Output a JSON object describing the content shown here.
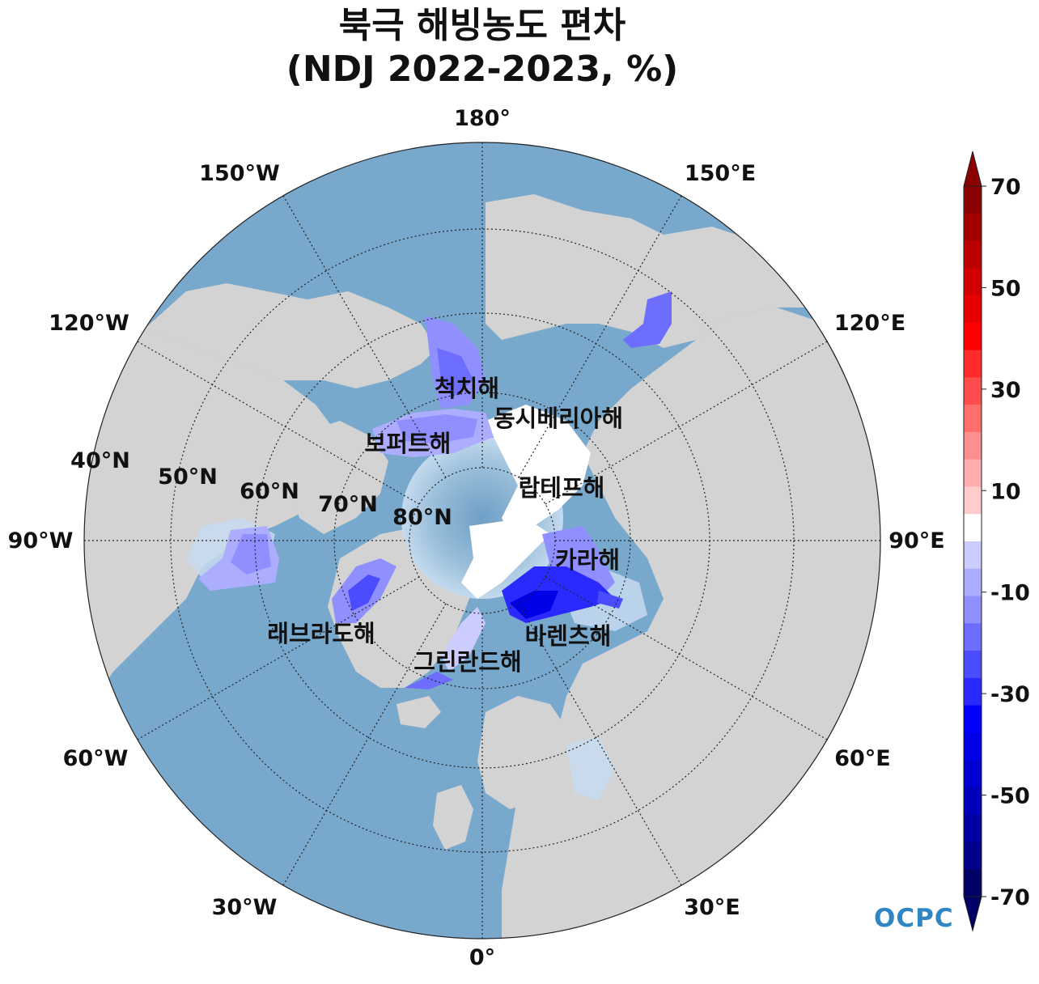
{
  "title": {
    "line1": "북극 해빙농도 편차",
    "line2": "(NDJ 2022-2023, %)"
  },
  "map": {
    "projection": "north-polar-stereographic",
    "longitude_labels": [
      "180°",
      "150°E",
      "120°E",
      "90°E",
      "60°E",
      "30°E",
      "0°",
      "30°W",
      "60°W",
      "90°W",
      "120°W",
      "150°W"
    ],
    "latitude_labels": [
      "40°N",
      "50°N",
      "60°N",
      "70°N",
      "80°N"
    ],
    "seas": [
      {
        "name": "척치해",
        "anomaly": "negative"
      },
      {
        "name": "동시베리아해",
        "anomaly": "near-zero"
      },
      {
        "name": "보퍼트해",
        "anomaly": "negative"
      },
      {
        "name": "랍테프해",
        "anomaly": "near-zero"
      },
      {
        "name": "카라해",
        "anomaly": "negative"
      },
      {
        "name": "바렌츠해",
        "anomaly": "strong-negative"
      },
      {
        "name": "그린란드해",
        "anomaly": "negative"
      },
      {
        "name": "래브라도해",
        "anomaly": "negative"
      }
    ],
    "colors": {
      "land": "#d3d3d3",
      "ocean_deep": "#7aa7cb",
      "ocean_shallow": "#c6dbef",
      "arctic_ice": "#b8d2e6"
    }
  },
  "colorbar": {
    "ticks": [
      "70",
      "50",
      "30",
      "10",
      "-10",
      "-30",
      "-50",
      "-70"
    ],
    "range": [
      -70,
      70
    ],
    "extend": "both",
    "colors_top_to_bottom": [
      "#8b0000",
      "#a50000",
      "#bb0000",
      "#d20000",
      "#e60000",
      "#ff0000",
      "#ff2a2a",
      "#ff4c4c",
      "#ff6d6d",
      "#ff8f8f",
      "#ffadad",
      "#ffcccc",
      "#ffffff",
      "#ccccff",
      "#adadff",
      "#8f8fff",
      "#6d6dff",
      "#4c4cff",
      "#2a2aff",
      "#0000ff",
      "#0000e6",
      "#0000d2",
      "#0000bb",
      "#0000a5",
      "#00008b",
      "#000066"
    ]
  },
  "logo": {
    "text": "OCPC"
  }
}
